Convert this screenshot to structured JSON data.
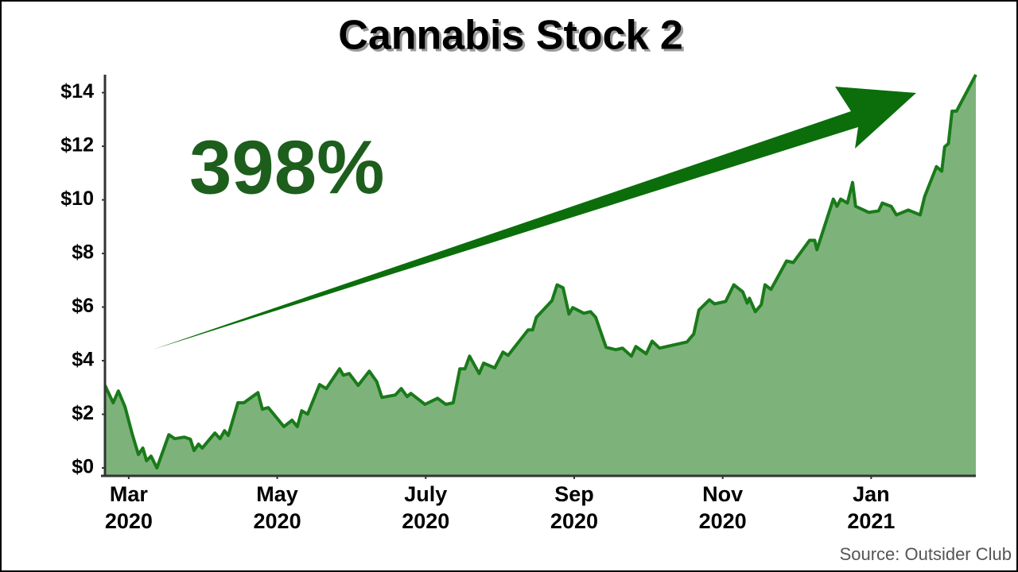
{
  "chart_data": {
    "type": "area",
    "title": "Cannabis Stock 2",
    "annotation": "398%",
    "source": "Source: Outsider Club",
    "color": "#7db37a",
    "line_color": "#1a7a1a",
    "xlim": [
      -0.32,
      11.41
    ],
    "ylim": [
      0,
      14.7
    ],
    "xticks": [
      {
        "value": 0,
        "label": "Mar 2020"
      },
      {
        "value": 2,
        "label": "May 2020"
      },
      {
        "value": 4,
        "label": "July 2020"
      },
      {
        "value": 6,
        "label": "Sep 2020"
      },
      {
        "value": 8,
        "label": "Nov 2020"
      },
      {
        "value": 10,
        "label": "Jan 2021"
      }
    ],
    "yticks": [
      {
        "value": 0,
        "label": "$0"
      },
      {
        "value": 2,
        "label": "$2"
      },
      {
        "value": 4,
        "label": "$4"
      },
      {
        "value": 6,
        "label": "$6"
      },
      {
        "value": 8,
        "label": "$8"
      },
      {
        "value": 10,
        "label": "$10"
      },
      {
        "value": 12,
        "label": "$12"
      },
      {
        "value": 14,
        "label": "$14"
      }
    ],
    "x": [
      -0.32,
      -0.21,
      -0.14,
      -0.05,
      0.05,
      0.13,
      0.19,
      0.24,
      0.3,
      0.38,
      0.54,
      0.62,
      0.75,
      0.83,
      0.88,
      0.94,
      0.99,
      1.16,
      1.23,
      1.29,
      1.34,
      1.47,
      1.55,
      1.74,
      1.8,
      1.88,
      2.09,
      2.2,
      2.27,
      2.33,
      2.41,
      2.57,
      2.66,
      2.84,
      2.89,
      2.97,
      3.09,
      3.24,
      3.34,
      3.41,
      3.59,
      3.67,
      3.75,
      3.8,
      3.99,
      4.16,
      4.27,
      4.37,
      4.46,
      4.53,
      4.59,
      4.72,
      4.78,
      4.93,
      5.04,
      5.11,
      5.38,
      5.44,
      5.49,
      5.7,
      5.77,
      5.85,
      5.93,
      5.98,
      6.13,
      6.22,
      6.29,
      6.43,
      6.56,
      6.65,
      6.77,
      6.83,
      6.97,
      7.05,
      7.15,
      7.52,
      7.61,
      7.68,
      7.82,
      7.89,
      8.04,
      8.15,
      8.27,
      8.33,
      8.36,
      8.44,
      8.52,
      8.57,
      8.65,
      8.86,
      8.95,
      9.17,
      9.24,
      9.27,
      9.49,
      9.54,
      9.59,
      9.68,
      9.75,
      9.79,
      9.97,
      10.1,
      10.15,
      10.27,
      10.34,
      10.5,
      10.66,
      10.72,
      10.88,
      10.95,
      10.99,
      11.04,
      11.09,
      11.15,
      11.41
    ],
    "values": [
      3.08,
      2.43,
      2.87,
      2.28,
      1.24,
      0.5,
      0.74,
      0.27,
      0.44,
      0,
      1.24,
      1.09,
      1.15,
      1.07,
      0.65,
      0.89,
      0.74,
      1.3,
      1.09,
      1.39,
      1.21,
      2.43,
      2.43,
      2.81,
      2.19,
      2.25,
      1.54,
      1.78,
      1.54,
      2.13,
      2.01,
      3.11,
      2.96,
      3.7,
      3.46,
      3.52,
      3.08,
      3.61,
      3.22,
      2.63,
      2.72,
      2.96,
      2.66,
      2.78,
      2.37,
      2.6,
      2.37,
      2.43,
      3.7,
      3.7,
      4.17,
      3.52,
      3.91,
      3.73,
      4.32,
      4.2,
      5.15,
      5.15,
      5.62,
      6.24,
      6.83,
      6.72,
      5.74,
      5.98,
      5.77,
      5.83,
      5.62,
      4.5,
      4.41,
      4.47,
      4.17,
      4.53,
      4.26,
      4.73,
      4.47,
      4.7,
      5.0,
      5.89,
      6.27,
      6.12,
      6.21,
      6.83,
      6.57,
      6.15,
      6.33,
      5.83,
      6.09,
      6.83,
      6.66,
      7.72,
      7.66,
      8.49,
      8.49,
      8.14,
      10.03,
      9.76,
      10.03,
      9.88,
      10.65,
      9.76,
      9.53,
      9.59,
      9.88,
      9.76,
      9.44,
      9.62,
      9.44,
      10.12,
      11.24,
      11.07,
      11.98,
      12.1,
      13.31,
      13.31,
      14.67
    ]
  }
}
